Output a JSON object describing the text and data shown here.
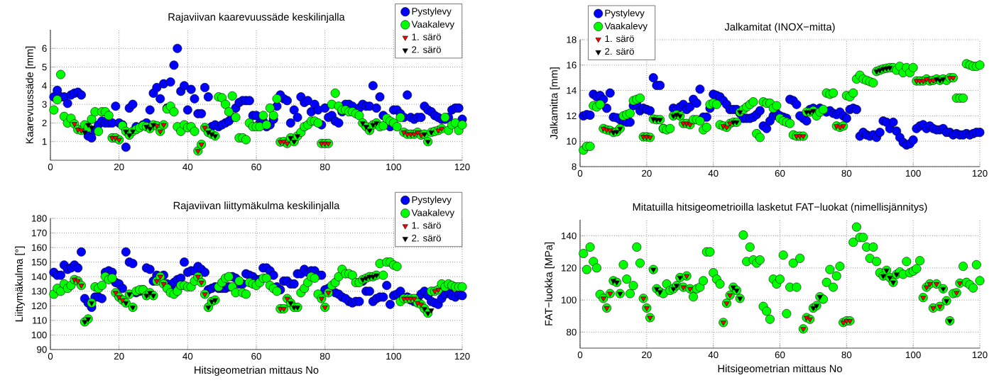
{
  "chart_data": [
    {
      "type": "scatter",
      "title": "Rajaviivan kaarevuussäde keskilinjalla",
      "ylabel": "Kaarevuussäde [mm]",
      "xlim": [
        0,
        120
      ],
      "ylim": [
        0,
        7
      ],
      "xticks": [
        0,
        20,
        40,
        60,
        80,
        100,
        120
      ],
      "yticks": [
        1,
        2,
        3,
        4,
        5,
        6
      ],
      "grid": true,
      "legend": "top right",
      "x": [
        1,
        2,
        3,
        4,
        5,
        6,
        7,
        8,
        9,
        10,
        11,
        12,
        13,
        14,
        15,
        16,
        17,
        18,
        19,
        20,
        21,
        22,
        23,
        24,
        25,
        26,
        27,
        28,
        29,
        30,
        31,
        32,
        33,
        34,
        35,
        36,
        37,
        38,
        39,
        40,
        41,
        42,
        43,
        44,
        45,
        46,
        47,
        48,
        49,
        50,
        51,
        52,
        53,
        54,
        55,
        56,
        57,
        58,
        59,
        60,
        61,
        62,
        63,
        64,
        65,
        66,
        67,
        68,
        69,
        70,
        71,
        72,
        73,
        74,
        75,
        76,
        77,
        78,
        79,
        80,
        81,
        82,
        83,
        84,
        85,
        86,
        87,
        88,
        89,
        90,
        91,
        92,
        93,
        94,
        95,
        96,
        97,
        98,
        99,
        100,
        101,
        102,
        103,
        104,
        105,
        106,
        107,
        108,
        109,
        110,
        111,
        112,
        113,
        114,
        115,
        116,
        117,
        118,
        119,
        120
      ],
      "series": [
        {
          "name": "Pystylevy",
          "color": "#0000ff",
          "marker": "circle",
          "values": [
            3.4,
            3.75,
            3.4,
            3.4,
            3.05,
            3.5,
            3.6,
            3.65,
            3.5,
            null,
            1.3,
            1.2,
            1.6,
            1.9,
            2.1,
            2.0,
            2.0,
            2.0,
            2.9,
            2.0,
            1.9,
            0.7,
            2.8,
            3.0,
            1.8,
            null,
            1.9,
            2.0,
            2.7,
            3.6,
            3.9,
            3.3,
            4.1,
            2.8,
            4.2,
            5.1,
            6.0,
            3.7,
            4.0,
            2.7,
            3.8,
            3.3,
            2.5,
            2.5,
            3.9,
            3.4,
            1.8,
            1.9,
            1.8,
            1.9,
            2.0,
            2.1,
            2.3,
            2.8,
            3.1,
            3.2,
            3.2,
            3.2,
            2.4,
            2.4,
            2.0,
            2.1,
            1.8,
            1.9,
            2.2,
            2.9,
            3.5,
            3.3,
            3.2,
            2.0,
            2.7,
            2.3,
            3.4,
            3.1,
            3.2,
            2.6,
            3.0,
            2.7,
            1.9,
            2.8,
            2.3,
            2.4,
            2.1,
            2.0,
            2.6,
            3.0,
            3.0,
            2.9,
            null,
            2.8,
            3.0,
            2.9,
            2.9,
            4.0,
            2.8,
            3.4,
            2.4,
            null,
            1.8,
            2.7,
            2.7,
            2.5,
            2.3,
            3.5,
            2.3,
            2.2,
            2.3,
            2.3,
            2.9,
            2.7,
            2.6,
            2.4,
            2.3,
            2.2,
            2.2,
            2.3,
            2.7,
            2.8,
            2.8,
            2.2
          ]
        },
        {
          "name": "Vaakalevy",
          "color": "#00ff00",
          "marker": "circle",
          "values": [
            2.7,
            3.25,
            4.6,
            2.35,
            2.0,
            2.25,
            1.95,
            1.65,
            1.6,
            1.9,
            1.75,
            2.2,
            2.6,
            1.55,
            2.6,
            2.6,
            2.4,
            1.2,
            1.2,
            1.1,
            1.85,
            1.55,
            1.35,
            1.55,
            1.65,
            1.75,
            1.85,
            1.8,
            1.7,
            1.9,
            1.85,
            1.55,
            1.9,
            2.75,
            2.9,
            2.6,
            1.8,
            1.55,
            1.9,
            1.75,
            1.8,
            1.55,
            0.5,
            0.85,
            1.75,
            1.5,
            1.4,
            1.3,
            3.4,
            3.35,
            3.0,
            2.6,
            3.45,
            2.3,
            1.2,
            1.2,
            1.1,
            2.0,
            1.8,
            1.8,
            1.8,
            2.4,
            1.9,
            2.8,
            2.4,
            3.3,
            0.98,
            1.0,
            0.9,
            1.2,
            1.0,
            1.3,
            1.5,
            1.8,
            1.9,
            2.1,
            2.1,
            2.0,
            0.9,
            0.9,
            0.9,
            3.0,
            3.6,
            2.9,
            2.7,
            2.7,
            2.6,
            2.6,
            2.5,
            2.4,
            2.0,
            1.8,
            1.6,
            1.9,
            2.0,
            1.8,
            1.85,
            2.25,
            2.1,
            2.0,
            1.8,
            2.3,
            1.5,
            1.4,
            1.4,
            1.4,
            1.5,
            1.35,
            1.4,
            1.0,
            1.5,
            1.55,
            1.6,
            1.7,
            2.3,
            1.6,
            1.9,
            2.0,
            1.6,
            1.9
          ]
        },
        {
          "name": "1. särö",
          "color": "#ff0000",
          "marker": "triangle",
          "x": [
            7,
            8,
            9,
            18,
            19,
            20,
            31,
            32,
            33,
            43,
            44,
            45,
            67,
            68,
            69,
            79,
            80,
            81,
            103,
            104,
            105,
            106,
            107,
            108,
            113,
            114
          ],
          "values": [
            1.95,
            1.65,
            1.6,
            1.2,
            1.2,
            1.1,
            1.85,
            1.55,
            1.9,
            0.5,
            0.85,
            1.75,
            0.98,
            1.0,
            0.9,
            0.9,
            0.9,
            0.9,
            1.5,
            1.4,
            1.4,
            1.4,
            1.5,
            1.35,
            1.6,
            1.7
          ]
        },
        {
          "name": "2. särö",
          "color": "#000000",
          "marker": "triangle",
          "x": [
            10,
            11,
            12,
            22,
            23,
            24,
            28,
            29,
            30,
            46,
            47,
            48,
            70,
            71,
            72,
            91,
            92,
            93,
            94,
            95,
            109,
            110,
            111
          ],
          "values": [
            1.5,
            1.9,
            1.75,
            1.55,
            1.35,
            1.55,
            1.8,
            1.7,
            1.9,
            1.5,
            1.4,
            1.3,
            1.2,
            1.0,
            1.3,
            2.0,
            1.8,
            1.6,
            1.9,
            2.0,
            1.4,
            1.0,
            1.5
          ]
        }
      ]
    },
    {
      "type": "scatter",
      "title": "Rajaviivan liittymäkulma keskilinjalla",
      "ylabel": "Liittymäkulma [°]",
      "xlabel": "Hitsigeometrian mittaus No",
      "xlim": [
        0,
        120
      ],
      "ylim": [
        90,
        180
      ],
      "xticks": [
        0,
        20,
        40,
        60,
        80,
        100,
        120
      ],
      "yticks": [
        90,
        100,
        110,
        120,
        130,
        140,
        150,
        160,
        170,
        180
      ],
      "grid": true,
      "legend": "top right",
      "x": [
        1,
        2,
        3,
        4,
        5,
        6,
        7,
        8,
        9,
        10,
        11,
        12,
        13,
        14,
        15,
        16,
        17,
        18,
        19,
        20,
        21,
        22,
        23,
        24,
        25,
        26,
        27,
        28,
        29,
        30,
        31,
        32,
        33,
        34,
        35,
        36,
        37,
        38,
        39,
        40,
        41,
        42,
        43,
        44,
        45,
        46,
        47,
        48,
        49,
        50,
        51,
        52,
        53,
        54,
        55,
        56,
        57,
        58,
        59,
        60,
        61,
        62,
        63,
        64,
        65,
        66,
        67,
        68,
        69,
        70,
        71,
        72,
        73,
        74,
        75,
        76,
        77,
        78,
        79,
        80,
        81,
        82,
        83,
        84,
        85,
        86,
        87,
        88,
        89,
        90,
        91,
        92,
        93,
        94,
        95,
        96,
        97,
        98,
        99,
        100,
        101,
        102,
        103,
        104,
        105,
        106,
        107,
        108,
        109,
        110,
        111,
        112,
        113,
        114,
        115,
        116,
        117,
        118,
        119,
        120
      ],
      "series": [
        {
          "name": "Pystylevy",
          "color": "#0000ff",
          "marker": "circle",
          "values": [
            143,
            141,
            141,
            148,
            145,
            146,
            148,
            146,
            157,
            125,
            122,
            119,
            126,
            126,
            125,
            143,
            144,
            143,
            136,
            135,
            132,
            157,
            150,
            149,
            129,
            130,
            131,
            146,
            145,
            137,
            141,
            140,
            141,
            135,
            133,
            136,
            138,
            139,
            150,
            143,
            144,
            144,
            147,
            145,
            143,
            131,
            132,
            133,
            132,
            132,
            132,
            133,
            140,
            139,
            135,
            135,
            142,
            141,
            140,
            138,
            138,
            146,
            146,
            144,
            141,
            133,
            131,
            137,
            137,
            135,
            135,
            142,
            142,
            145,
            143,
            144,
            144,
            141,
            141,
            131,
            132,
            null,
            129,
            128,
            126,
            125,
            123,
            122,
            123,
            123,
            137,
            130,
            130,
            123,
            125,
            126,
            126,
            134,
            121,
            127,
            128,
            130,
            125,
            126,
            124,
            123,
            125,
            128,
            130,
            127,
            123,
            122,
            121,
            125,
            128,
            130,
            127,
            126,
            128,
            127
          ]
        },
        {
          "name": "Vaakalevy",
          "color": "#00ff00",
          "marker": "circle",
          "values": [
            128,
            132,
            130,
            135,
            132,
            134,
            138,
            137,
            134,
            109,
            111,
            122,
            133,
            132,
            134,
            140,
            138,
            139,
            129,
            126,
            124,
            122,
            128,
            119,
            130,
            131,
            131,
            127,
            129,
            127,
            137,
            140,
            135,
            132,
            129,
            128,
            130,
            134,
            134,
            133,
            133,
            137,
            140,
            136,
            128,
            119,
            123,
            124,
            133,
            136,
            139,
            140,
            133,
            129,
            137,
            129,
            128,
            136,
            135,
            134,
            136,
            139,
            139,
            134,
            132,
            130,
            118,
            118,
            125,
            122,
            119,
            119,
            129,
            132,
            136,
            140,
            139,
            128,
            125,
            119,
            129,
            134,
            136,
            140,
            145,
            142,
            142,
            141,
            136,
            136,
            138,
            139,
            140,
            140,
            141,
            149,
            141,
            150,
            150,
            148,
            147,
            123,
            125,
            125,
            125,
            125,
            122,
            121,
            118,
            115,
            130,
            130,
            131,
            135,
            133,
            135,
            134,
            133,
            133,
            133
          ]
        },
        {
          "name": "1. särö",
          "color": "#ff0000",
          "marker": "triangle",
          "x": [
            7,
            8,
            9,
            19,
            20,
            21,
            31,
            32,
            33,
            43,
            44,
            45,
            67,
            68,
            69,
            79,
            80,
            81,
            103,
            104,
            105,
            106,
            107,
            108,
            112,
            113
          ],
          "values": [
            138,
            137,
            134,
            129,
            126,
            124,
            137,
            140,
            135,
            140,
            136,
            128,
            118,
            118,
            125,
            125,
            119,
            129,
            125,
            125,
            125,
            125,
            122,
            121,
            130,
            131
          ]
        },
        {
          "name": "2. särö",
          "color": "#000000",
          "marker": "triangle",
          "x": [
            10,
            11,
            12,
            22,
            23,
            24,
            28,
            29,
            30,
            46,
            47,
            48,
            70,
            71,
            72,
            91,
            92,
            93,
            94,
            95,
            109,
            110,
            111
          ],
          "values": [
            109,
            111,
            122,
            122,
            128,
            119,
            127,
            129,
            127,
            119,
            123,
            124,
            122,
            119,
            119,
            138,
            139,
            140,
            140,
            141,
            118,
            115,
            117
          ]
        }
      ]
    },
    {
      "type": "scatter",
      "title": "Jalkamitat (INOX−mitta)",
      "ylabel": "Jalkamitta [mm]",
      "xlim": [
        0,
        120
      ],
      "ylim": [
        8,
        18
      ],
      "xticks": [
        0,
        20,
        40,
        60,
        80,
        100,
        120
      ],
      "yticks": [
        8,
        10,
        12,
        14,
        16,
        18
      ],
      "grid": true,
      "legend": "top left",
      "x": [
        1,
        2,
        3,
        4,
        5,
        6,
        7,
        8,
        9,
        10,
        11,
        12,
        13,
        14,
        15,
        16,
        17,
        18,
        19,
        20,
        21,
        22,
        23,
        24,
        25,
        26,
        27,
        28,
        29,
        30,
        31,
        32,
        33,
        34,
        35,
        36,
        37,
        38,
        39,
        40,
        41,
        42,
        43,
        44,
        45,
        46,
        47,
        48,
        49,
        50,
        51,
        52,
        53,
        54,
        55,
        56,
        57,
        58,
        59,
        60,
        61,
        62,
        63,
        64,
        65,
        66,
        67,
        68,
        69,
        70,
        71,
        72,
        73,
        74,
        75,
        76,
        77,
        78,
        79,
        80,
        81,
        82,
        83,
        84,
        85,
        86,
        87,
        88,
        89,
        90,
        91,
        92,
        93,
        94,
        95,
        96,
        97,
        98,
        99,
        100,
        101,
        102,
        103,
        104,
        105,
        106,
        107,
        108,
        109,
        110,
        111,
        112,
        113,
        114,
        115,
        116,
        117,
        118,
        119,
        120
      ],
      "series": [
        {
          "name": "Pystylevy",
          "color": "#0000ff",
          "marker": "circle",
          "values": [
            12.0,
            12.1,
            12.05,
            13.7,
            13.5,
            13.6,
            13.3,
            12.6,
            13.8,
            11.9,
            11.85,
            11.7,
            11.6,
            11.5,
            11.5,
            12.8,
            12.9,
            12.4,
            12.6,
            12.5,
            12.4,
            15.0,
            14.4,
            14.4,
            11.0,
            null,
            null,
            12.6,
            12.5,
            12.7,
            12.9,
            12.5,
            12.7,
            13.3,
            13.0,
            14.1,
            11.9,
            11.9,
            12.6,
            13.7,
            13.6,
            13.5,
            13.2,
            12.9,
            12.5,
            12.5,
            12.5,
            12.2,
            11.8,
            11.8,
            11.8,
            11.9,
            12.1,
            12.4,
            11.2,
            11.0,
            11.6,
            12.0,
            12.2,
            12.0,
            11.9,
            11.8,
            13.3,
            13.2,
            12.9,
            12.0,
            11.8,
            11.6,
            12.5,
            12.6,
            null,
            12.6,
            null,
            12.3,
            12.4,
            12.2,
            12.1,
            12.3,
            12.0,
            11.8,
            12.5,
            12.6,
            12.5,
            10.4,
            10.7,
            10.5,
            10.4,
            10.5,
            10.3,
            10.7,
            11.6,
            11.5,
            11.0,
            11.5,
            10.8,
            10.3,
            9.9,
            9.7,
            9.8,
            10.1,
            11.0,
            11.2,
            11.3,
            11.0,
            11.2,
            11.0,
            10.9,
            10.9,
            11.0,
            10.7,
            10.7,
            10.5,
            10.6,
            10.5,
            10.5,
            10.6,
            10.5,
            10.6,
            10.7,
            10.7
          ]
        },
        {
          "name": "Vaakalevy",
          "color": "#00ff00",
          "marker": "circle",
          "values": [
            9.3,
            9.6,
            9.6,
            12.8,
            12.7,
            12.9,
            11.0,
            10.9,
            10.85,
            10.7,
            10.75,
            11.0,
            12.0,
            12.1,
            12.2,
            13.2,
            13.3,
            13.4,
            10.35,
            10.35,
            10.3,
            11.75,
            11.7,
            11.7,
            11.0,
            10.9,
            11.0,
            12.0,
            12.1,
            12.0,
            11.4,
            11.4,
            11.3,
            11.7,
            11.7,
            11.6,
            10.9,
            11.1,
            12.9,
            13.0,
            12.9,
            11.3,
            11.2,
            11.1,
            11.4,
            11.5,
            11.5,
            12.3,
            12.5,
            12.7,
            12.9,
            13.1,
            10.6,
            10.3,
            13.1,
            13.0,
            13.0,
            12.6,
            12.8,
            11.8,
            11.6,
            11.5,
            11.4,
            10.5,
            10.4,
            10.4,
            10.4,
            12.3,
            12.3,
            12.4,
            12.0,
            12.3,
            12.5,
            13.8,
            13.7,
            13.8,
            11.2,
            11.1,
            11.2,
            13.6,
            13.5,
            13.8,
            14.9,
            15.2,
            14.9,
            14.8,
            14.7,
            14.6,
            15.5,
            15.6,
            15.7,
            15.75,
            15.8,
            15.8,
            15.6,
            15.9,
            15.4,
            15.8,
            15.4,
            15.8,
            14.75,
            14.75,
            14.75,
            14.9,
            14.75,
            14.8,
            14.9,
            14.8,
            14.9,
            14.8,
            15.0,
            15.0,
            13.4,
            13.4,
            13.4,
            16.1,
            16.0,
            15.9,
            15.9,
            16.0
          ]
        },
        {
          "name": "1. särö",
          "color": "#ff0000",
          "marker": "triangle",
          "x": [
            7,
            8,
            9,
            19,
            20,
            21,
            31,
            32,
            33,
            43,
            44,
            45,
            65,
            66,
            67,
            77,
            78,
            79,
            101,
            102,
            103,
            104,
            105,
            106,
            111,
            112
          ],
          "values": [
            11.0,
            10.9,
            10.85,
            10.35,
            10.35,
            10.3,
            11.4,
            11.4,
            11.3,
            11.2,
            11.1,
            11.4,
            10.4,
            10.4,
            10.4,
            11.2,
            11.1,
            11.2,
            14.75,
            14.75,
            14.75,
            14.9,
            14.75,
            14.8,
            15.0,
            15.0
          ]
        },
        {
          "name": "2. särö",
          "color": "#000000",
          "marker": "triangle",
          "x": [
            10,
            11,
            12,
            22,
            23,
            24,
            28,
            29,
            30,
            46,
            47,
            48,
            68,
            69,
            70,
            89,
            90,
            91,
            92,
            93,
            107,
            108,
            109
          ],
          "values": [
            10.7,
            10.75,
            11.0,
            11.75,
            11.7,
            11.7,
            12.0,
            12.1,
            12.0,
            11.5,
            11.5,
            12.3,
            12.3,
            12.3,
            12.4,
            15.5,
            15.6,
            15.7,
            15.75,
            15.8,
            14.9,
            14.8,
            14.9
          ]
        }
      ]
    },
    {
      "type": "scatter",
      "title": "Mitatuilla hitsigeometrioilla lasketut FAT−luokat (nimellisjännitys)",
      "ylabel": "FAT−luokka [MPa]",
      "xlabel": "Hitsigeometrian mittaus No",
      "xlim": [
        0,
        120
      ],
      "ylim": [
        70,
        150
      ],
      "xticks": [
        0,
        20,
        40,
        60,
        80,
        100,
        120
      ],
      "yticks": [
        80,
        100,
        120,
        140
      ],
      "grid": true,
      "x": [
        1,
        2,
        3,
        4,
        5,
        6,
        7,
        8,
        9,
        10,
        11,
        12,
        13,
        14,
        15,
        16,
        17,
        18,
        19,
        20,
        21,
        22,
        23,
        24,
        25,
        26,
        27,
        28,
        29,
        30,
        31,
        32,
        33,
        34,
        35,
        36,
        37,
        38,
        39,
        40,
        41,
        42,
        43,
        44,
        45,
        46,
        47,
        48,
        49,
        50,
        51,
        52,
        53,
        54,
        55,
        56,
        57,
        58,
        59,
        60,
        61,
        62,
        63,
        64,
        65,
        66,
        67,
        68,
        69,
        70,
        71,
        72,
        73,
        74,
        75,
        76,
        77,
        78,
        79,
        80,
        81,
        82,
        83,
        84,
        85,
        86,
        87,
        88,
        89,
        90,
        91,
        92,
        93,
        94,
        95,
        96,
        97,
        98,
        99,
        100,
        101,
        102,
        103,
        104,
        105,
        106,
        107,
        108,
        109,
        110,
        111,
        112,
        113,
        114,
        115,
        116,
        117,
        118,
        119,
        120
      ],
      "series": [
        {
          "color": "#00ff00",
          "marker": "circle",
          "values": [
            129,
            119,
            133,
            124,
            120,
            103.5,
            101,
            95,
            104,
            112,
            111,
            104,
            122,
            113,
            104,
            109,
            133,
            123,
            101,
            95,
            89,
            119,
            107,
            105,
            104,
            110,
            106,
            107,
            109,
            114,
            108,
            115,
            107,
            102,
            107,
            108,
            112,
            130,
            130,
            117,
            113,
            110,
            86,
            98,
            103,
            108,
            106,
            101,
            140.5,
            124,
            133,
            125,
            123,
            125,
            96,
            93,
            88,
            113,
            110,
            113,
            128,
            91.5,
            108,
            123,
            108,
            126,
            82,
            89,
            88,
            95,
            96.5,
            102,
            100.5,
            111,
            119,
            108,
            115,
            121,
            86,
            87,
            87,
            136,
            145.5,
            139,
            139,
            133,
            126,
            133,
            124,
            117,
            115,
            118.5,
            114,
            111,
            116,
            117.5,
            116,
            124,
            117,
            118,
            119.5,
            124.5,
            101.5,
            108,
            110,
            95,
            110,
            96,
            107,
            99.5,
            87,
            104,
            104.5,
            110.5,
            121,
            111,
            109.5,
            107.5,
            122,
            112
          ]
        },
        {
          "color": "#ff0000",
          "marker": "triangle",
          "x": [
            7,
            8,
            9,
            19,
            20,
            21,
            31,
            32,
            33,
            43,
            44,
            45,
            67,
            68,
            69,
            79,
            80,
            81,
            103,
            104,
            105,
            106,
            107,
            108,
            113,
            114
          ],
          "values": [
            101,
            95,
            104,
            101,
            95,
            89,
            108,
            115,
            107,
            86,
            98,
            103,
            82,
            89,
            88,
            86,
            87,
            87,
            101.5,
            108,
            110,
            95,
            110,
            96,
            104.5,
            110.5
          ]
        },
        {
          "color": "#000000",
          "marker": "triangle",
          "x": [
            10,
            11,
            12,
            22,
            23,
            24,
            28,
            29,
            30,
            46,
            47,
            48,
            70,
            71,
            72,
            91,
            92,
            93,
            94,
            95,
            109,
            110,
            111
          ],
          "values": [
            112,
            111,
            104,
            119,
            107,
            105,
            107,
            109,
            114,
            108,
            106,
            101,
            95,
            96.5,
            102,
            115,
            118.5,
            114,
            111,
            116,
            107,
            99.5,
            87
          ]
        }
      ]
    }
  ]
}
